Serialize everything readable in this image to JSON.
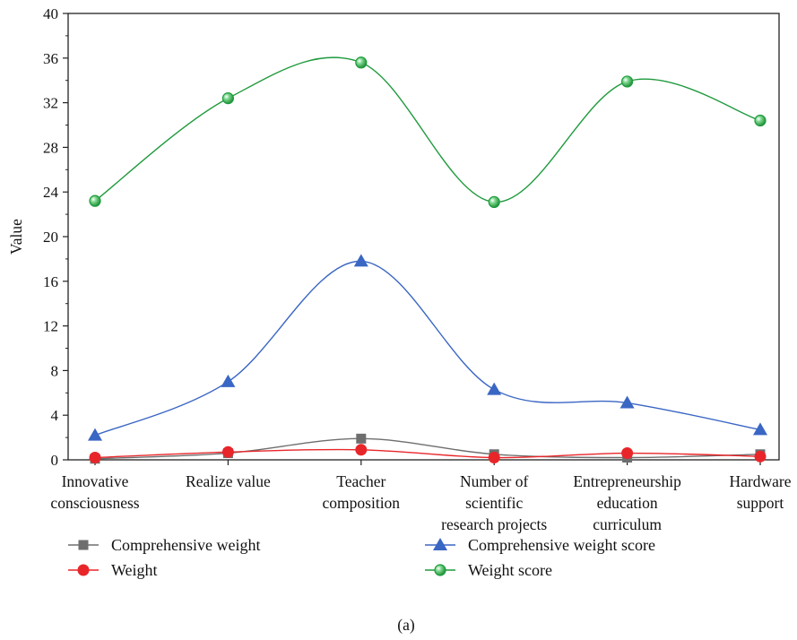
{
  "chart_data": {
    "type": "line",
    "smooth": true,
    "categories": [
      [
        "Innovative",
        "consciousness"
      ],
      [
        "Realize value"
      ],
      [
        "Teacher",
        "composition"
      ],
      [
        "Number of",
        "scientific",
        "research projects"
      ],
      [
        "Entrepreneurship",
        "education",
        "curriculum"
      ],
      [
        "Hardware",
        "support"
      ]
    ],
    "ylabel": "Value",
    "xlabel": "",
    "ylim": [
      0,
      40
    ],
    "yticks": [
      0,
      4,
      8,
      12,
      16,
      20,
      24,
      28,
      32,
      36,
      40
    ],
    "series": [
      {
        "name": "Comprehensive weight",
        "marker": "square",
        "color": "#6e6e6e",
        "values": [
          0.1,
          0.6,
          1.9,
          0.5,
          0.2,
          0.5
        ]
      },
      {
        "name": "Weight",
        "marker": "circle",
        "color": "#e8262a",
        "values": [
          0.2,
          0.7,
          0.9,
          0.2,
          0.6,
          0.3
        ]
      },
      {
        "name": "Comprehensive weight score",
        "marker": "triangle",
        "color": "#3a66c4",
        "values": [
          2.2,
          7.0,
          17.8,
          6.3,
          5.1,
          2.7
        ]
      },
      {
        "name": "Weight score",
        "marker": "sphere",
        "color": "#1e9a3c",
        "values": [
          23.2,
          32.4,
          35.6,
          23.1,
          33.9,
          30.4
        ]
      }
    ],
    "legend_position": "bottom"
  },
  "caption": "(a)"
}
